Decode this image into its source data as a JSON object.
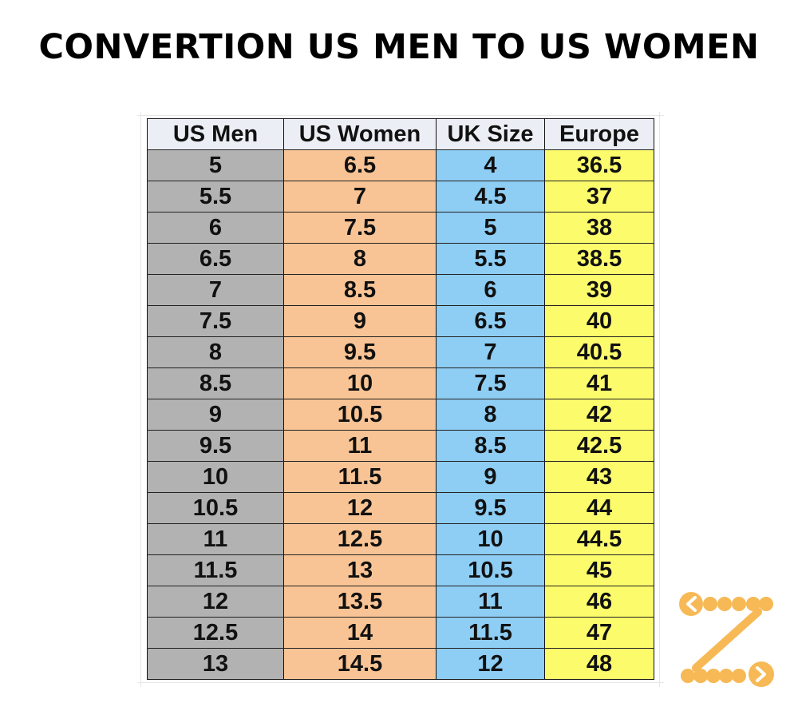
{
  "title": "CONVERTION US MEN TO US WOMEN",
  "table": {
    "headers": [
      "US Men",
      "US Women",
      "UK Size",
      "Europe"
    ],
    "rows": [
      [
        "5",
        "6.5",
        "4",
        "36.5"
      ],
      [
        "5.5",
        "7",
        "4.5",
        "37"
      ],
      [
        "6",
        "7.5",
        "5",
        "38"
      ],
      [
        "6.5",
        "8",
        "5.5",
        "38.5"
      ],
      [
        "7",
        "8.5",
        "6",
        "39"
      ],
      [
        "7.5",
        "9",
        "6.5",
        "40"
      ],
      [
        "8",
        "9.5",
        "7",
        "40.5"
      ],
      [
        "8.5",
        "10",
        "7.5",
        "41"
      ],
      [
        "9",
        "10.5",
        "8",
        "42"
      ],
      [
        "9.5",
        "11",
        "8.5",
        "42.5"
      ],
      [
        "10",
        "11.5",
        "9",
        "43"
      ],
      [
        "10.5",
        "12",
        "9.5",
        "44"
      ],
      [
        "11",
        "12.5",
        "10",
        "44.5"
      ],
      [
        "11.5",
        "13",
        "10.5",
        "45"
      ],
      [
        "12",
        "13.5",
        "11",
        "46"
      ],
      [
        "12.5",
        "14",
        "11.5",
        "47"
      ],
      [
        "13",
        "14.5",
        "12",
        "48"
      ]
    ]
  },
  "colors": {
    "us_men": "#b2b2b2",
    "us_women": "#f9c495",
    "uk_size": "#8ecdf4",
    "europe": "#fbfb6c",
    "header": "#eceef5",
    "logo": "#f7b955"
  },
  "logo": {
    "icon": "z-dots-arrows-logo"
  }
}
